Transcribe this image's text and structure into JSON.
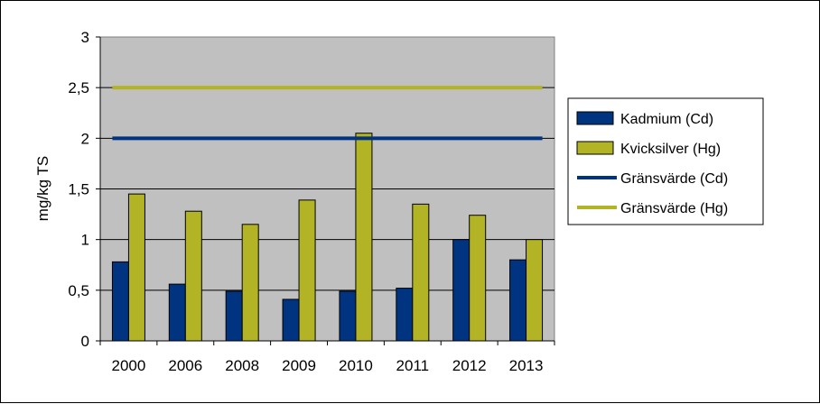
{
  "chart_data": {
    "type": "bar",
    "title": "",
    "xlabel": "",
    "ylabel": "mg/kg TS",
    "ylim": [
      0,
      3
    ],
    "y_ticks": [
      "0",
      "0,5",
      "1",
      "1,5",
      "2",
      "2,5",
      "3"
    ],
    "y_tick_values": [
      0,
      0.5,
      1,
      1.5,
      2,
      2.5,
      3
    ],
    "categories": [
      "2000",
      "2006",
      "2008",
      "2009",
      "2010",
      "2011",
      "2012",
      "2013"
    ],
    "series": [
      {
        "name": "Kadmium (Cd)",
        "kind": "bar",
        "color": "#003380",
        "values": [
          0.78,
          0.56,
          0.49,
          0.41,
          0.49,
          0.52,
          1.0,
          0.8
        ]
      },
      {
        "name": "Kvicksilver (Hg)",
        "kind": "bar",
        "color": "#b3b326",
        "values": [
          1.45,
          1.28,
          1.15,
          1.39,
          2.05,
          1.35,
          1.24,
          1.0
        ]
      },
      {
        "name": "Gränsvärde (Cd)",
        "kind": "line",
        "color": "#003380",
        "value": 2.0
      },
      {
        "name": "Gränsvärde (Hg)",
        "kind": "line",
        "color": "#b3b326",
        "value": 2.5
      }
    ],
    "grid": true,
    "plot_background": "#c0c0c0",
    "legend_position": "right"
  }
}
